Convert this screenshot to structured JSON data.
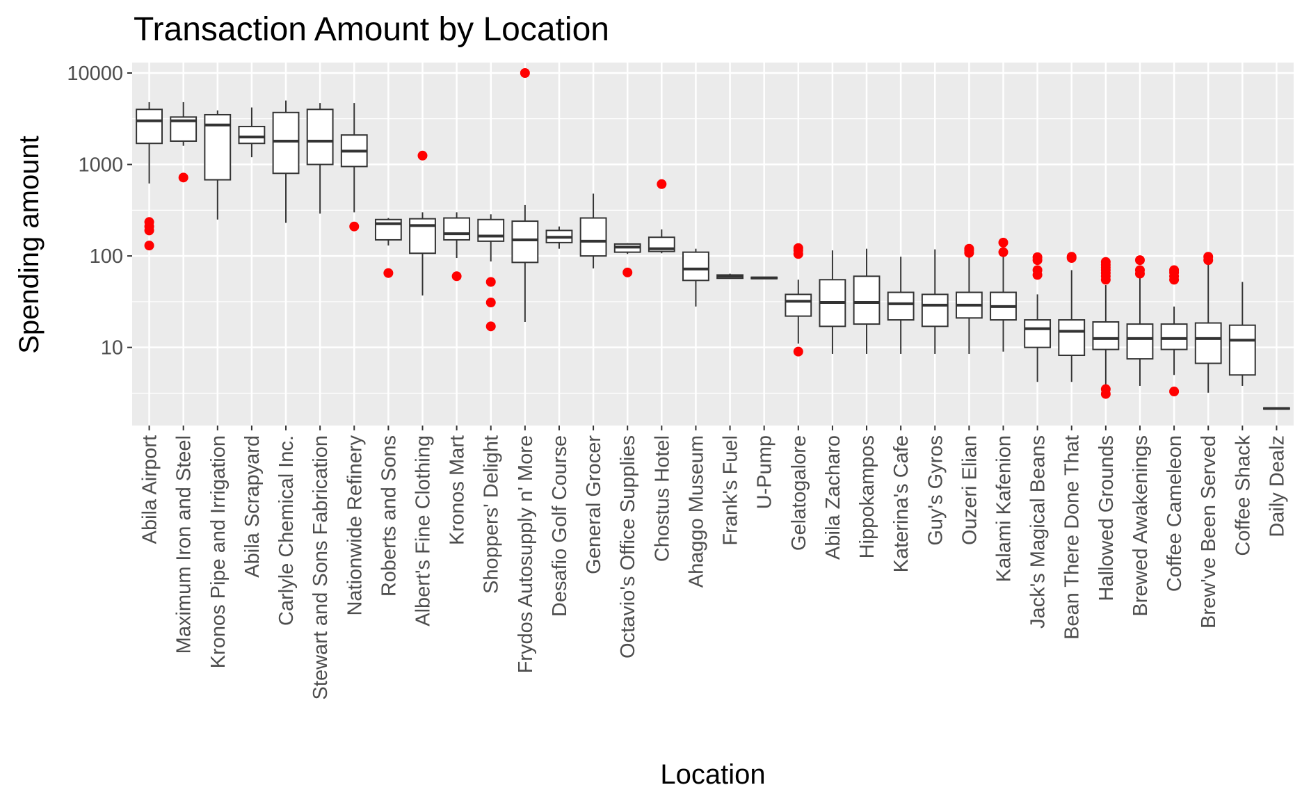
{
  "chart_data": {
    "type": "boxplot",
    "title": "Transaction Amount by Location",
    "xlabel": "Location",
    "ylabel": "Spending amount",
    "y_scale": "log10",
    "ylim": [
      1.4,
      13000
    ],
    "y_ticks": [
      {
        "value": 10,
        "label": "10"
      },
      {
        "value": 100,
        "label": "100"
      },
      {
        "value": 1000,
        "label": "1000"
      },
      {
        "value": 10000,
        "label": "10000"
      }
    ],
    "y_minor_ticks": [
      3.16,
      31.6,
      316,
      3162
    ],
    "grid": true,
    "colors": {
      "panel_background": "#ebebeb",
      "grid": "#ffffff",
      "box_fill": "#ffffff",
      "box_line": "#333333",
      "outlier": "#ff0000",
      "tick": "#333333"
    },
    "categories": [
      "Abila Airport",
      "Maximum Iron and Steel",
      "Kronos Pipe and Irrigation",
      "Abila Scrapyard",
      "Carlyle Chemical Inc.",
      "Stewart and Sons Fabrication",
      "Nationwide Refinery",
      "Roberts and Sons",
      "Albert's Fine Clothing",
      "Kronos Mart",
      "Shoppers' Delight",
      "Frydos Autosupply n' More",
      "Desafio Golf Course",
      "General Grocer",
      "Octavio's Office Supplies",
      "Chostus Hotel",
      "Ahaggo Museum",
      "Frank's Fuel",
      "U-Pump",
      "Gelatogalore",
      "Abila Zacharo",
      "Hippokampos",
      "Katerina's Cafe",
      "Guy's Gyros",
      "Ouzeri Elian",
      "Kalami Kafenion",
      "Jack's Magical Beans",
      "Bean There Done That",
      "Hallowed Grounds",
      "Brewed Awakenings",
      "Coffee Cameleon",
      "Brew've Been Served",
      "Coffee Shack",
      "Daily Dealz"
    ],
    "boxes": [
      {
        "min": 620,
        "q1": 1700,
        "median": 3000,
        "q3": 4000,
        "max": 4800,
        "outliers": [
          130,
          190,
          210,
          235
        ]
      },
      {
        "min": 1600,
        "q1": 1800,
        "median": 3000,
        "q3": 3300,
        "max": 4800,
        "outliers": [
          720
        ]
      },
      {
        "min": 250,
        "q1": 680,
        "median": 2700,
        "q3": 3500,
        "max": 3900,
        "outliers": []
      },
      {
        "min": 1200,
        "q1": 1700,
        "median": 2000,
        "q3": 2600,
        "max": 4200,
        "outliers": []
      },
      {
        "min": 230,
        "q1": 800,
        "median": 1800,
        "q3": 3700,
        "max": 5000,
        "outliers": []
      },
      {
        "min": 290,
        "q1": 1000,
        "median": 1800,
        "q3": 4000,
        "max": 4700,
        "outliers": []
      },
      {
        "min": 300,
        "q1": 950,
        "median": 1400,
        "q3": 2100,
        "max": 4700,
        "outliers": [
          210
        ]
      },
      {
        "min": 130,
        "q1": 150,
        "median": 225,
        "q3": 250,
        "max": 260,
        "outliers": [
          65
        ]
      },
      {
        "min": 37,
        "q1": 107,
        "median": 215,
        "q3": 255,
        "max": 300,
        "outliers": [
          1250
        ]
      },
      {
        "min": 95,
        "q1": 150,
        "median": 175,
        "q3": 260,
        "max": 300,
        "outliers": [
          60
        ]
      },
      {
        "min": 87,
        "q1": 145,
        "median": 165,
        "q3": 250,
        "max": 285,
        "outliers": [
          17,
          31,
          52
        ]
      },
      {
        "min": 19,
        "q1": 85,
        "median": 150,
        "q3": 240,
        "max": 360,
        "outliers": [
          10000
        ]
      },
      {
        "min": 120,
        "q1": 140,
        "median": 160,
        "q3": 190,
        "max": 210,
        "outliers": []
      },
      {
        "min": 73,
        "q1": 100,
        "median": 145,
        "q3": 260,
        "max": 480,
        "outliers": []
      },
      {
        "min": 105,
        "q1": 110,
        "median": 125,
        "q3": 135,
        "max": 138,
        "outliers": [
          66
        ]
      },
      {
        "min": 107,
        "q1": 112,
        "median": 120,
        "q3": 160,
        "max": 195,
        "outliers": [
          610
        ]
      },
      {
        "min": 28,
        "q1": 54,
        "median": 72,
        "q3": 110,
        "max": 120,
        "outliers": []
      },
      {
        "min": 56,
        "q1": 57,
        "median": 60,
        "q3": 62,
        "max": 64,
        "outliers": []
      },
      {
        "min": 56,
        "q1": 56.5,
        "median": 57.5,
        "q3": 58.5,
        "max": 59,
        "outliers": []
      },
      {
        "min": 11,
        "q1": 22,
        "median": 32,
        "q3": 38,
        "max": 55,
        "outliers": [
          9,
          105,
          115,
          122
        ]
      },
      {
        "min": 8.5,
        "q1": 17,
        "median": 31,
        "q3": 55,
        "max": 115,
        "outliers": []
      },
      {
        "min": 8.5,
        "q1": 18,
        "median": 31,
        "q3": 60,
        "max": 120,
        "outliers": []
      },
      {
        "min": 8.5,
        "q1": 20,
        "median": 30,
        "q3": 40,
        "max": 98,
        "outliers": []
      },
      {
        "min": 8.5,
        "q1": 17,
        "median": 29,
        "q3": 38,
        "max": 118,
        "outliers": []
      },
      {
        "min": 8.5,
        "q1": 21,
        "median": 29,
        "q3": 40,
        "max": 100,
        "outliers": [
          108,
          115,
          120
        ]
      },
      {
        "min": 9,
        "q1": 20,
        "median": 28,
        "q3": 40,
        "max": 100,
        "outliers": [
          110,
          140
        ]
      },
      {
        "min": 4.2,
        "q1": 10,
        "median": 16,
        "q3": 20,
        "max": 38,
        "outliers": [
          62,
          70,
          90,
          97
        ]
      },
      {
        "min": 4.2,
        "q1": 8.2,
        "median": 15,
        "q3": 20,
        "max": 70,
        "outliers": [
          95,
          98
        ]
      },
      {
        "min": 3.8,
        "q1": 9.5,
        "median": 12.5,
        "q3": 19,
        "max": 48,
        "outliers": [
          3.1,
          3.5,
          55,
          60,
          65,
          70,
          75,
          80,
          86
        ]
      },
      {
        "min": 3.8,
        "q1": 7.5,
        "median": 12.5,
        "q3": 18,
        "max": 60,
        "outliers": [
          64,
          70,
          90
        ]
      },
      {
        "min": 5,
        "q1": 9.5,
        "median": 12.5,
        "q3": 18,
        "max": 28,
        "outliers": [
          3.3,
          55,
          60,
          66,
          70
        ]
      },
      {
        "min": 3.2,
        "q1": 6.7,
        "median": 12.5,
        "q3": 18.5,
        "max": 85,
        "outliers": [
          90,
          98
        ]
      },
      {
        "min": 3.8,
        "q1": 5,
        "median": 12,
        "q3": 17.5,
        "max": 52,
        "outliers": []
      },
      {
        "min": 2.1,
        "q1": 2.12,
        "median": 2.15,
        "q3": 2.18,
        "max": 2.2,
        "outliers": []
      }
    ]
  }
}
